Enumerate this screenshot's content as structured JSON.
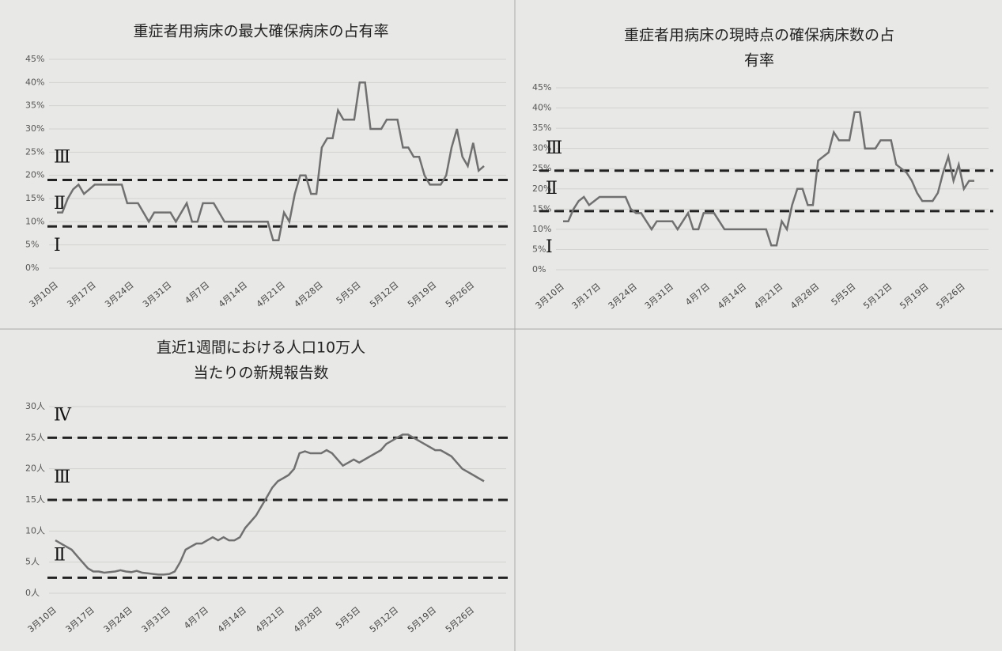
{
  "chart_data": [
    {
      "type": "line",
      "title": [
        "重症者用病床の最大確保病床の占有率"
      ],
      "categories": [
        "3月10日",
        null,
        null,
        null,
        null,
        null,
        null,
        "3月17日",
        null,
        null,
        null,
        null,
        null,
        null,
        "3月24日",
        null,
        null,
        null,
        null,
        null,
        null,
        "3月31日",
        null,
        null,
        null,
        null,
        null,
        null,
        "4月7日",
        null,
        null,
        null,
        null,
        null,
        null,
        "4月14日",
        null,
        null,
        null,
        null,
        null,
        null,
        "4月21日",
        null,
        null,
        null,
        null,
        null,
        null,
        "4月28日",
        null,
        null,
        null,
        null,
        null,
        null,
        "5月5日",
        null,
        null,
        null,
        null,
        null,
        null,
        "5月12日",
        null,
        null,
        null,
        null,
        null,
        null,
        "5月19日",
        null,
        null,
        null,
        null,
        null,
        null,
        "5月26日",
        null,
        null
      ],
      "values": [
        12,
        12,
        15,
        17,
        18,
        16,
        17,
        18,
        18,
        18,
        18,
        18,
        18,
        14,
        14,
        14,
        12,
        10,
        12,
        12,
        12,
        12,
        10,
        12,
        14,
        10,
        10,
        14,
        14,
        14,
        12,
        10,
        10,
        10,
        10,
        10,
        10,
        10,
        10,
        10,
        6,
        6,
        12,
        10,
        16,
        20,
        20,
        16,
        16,
        26,
        28,
        28,
        34,
        32,
        32,
        32,
        40,
        40,
        30,
        30,
        30,
        32,
        32,
        32,
        26,
        26,
        24,
        24,
        20,
        18,
        18,
        18,
        20,
        26,
        30,
        24,
        22,
        27,
        21,
        22
      ],
      "color": "#707070",
      "ylim": [
        0,
        45
      ],
      "yticks": [
        {
          "value": 0,
          "label": "0%"
        },
        {
          "value": 5,
          "label": "5%"
        },
        {
          "value": 10,
          "label": "10%"
        },
        {
          "value": 15,
          "label": "15%"
        },
        {
          "value": 20,
          "label": "20%"
        },
        {
          "value": 25,
          "label": "25%"
        },
        {
          "value": 30,
          "label": "30%"
        },
        {
          "value": 35,
          "label": "35%"
        },
        {
          "value": 40,
          "label": "40%"
        },
        {
          "value": 45,
          "label": "45%"
        }
      ],
      "thresholds": [
        9,
        19
      ],
      "stage_labels": [
        "Ⅰ",
        "Ⅱ",
        "Ⅲ"
      ]
    },
    {
      "type": "line",
      "title": [
        "重症者用病床の現時点の確保病床数の占",
        "有率"
      ],
      "categories": [
        "3月10日",
        null,
        null,
        null,
        null,
        null,
        null,
        "3月17日",
        null,
        null,
        null,
        null,
        null,
        null,
        "3月24日",
        null,
        null,
        null,
        null,
        null,
        null,
        "3月31日",
        null,
        null,
        null,
        null,
        null,
        null,
        "4月7日",
        null,
        null,
        null,
        null,
        null,
        null,
        "4月14日",
        null,
        null,
        null,
        null,
        null,
        null,
        "4月21日",
        null,
        null,
        null,
        null,
        null,
        null,
        "4月28日",
        null,
        null,
        null,
        null,
        null,
        null,
        "5月5日",
        null,
        null,
        null,
        null,
        null,
        null,
        "5月12日",
        null,
        null,
        null,
        null,
        null,
        null,
        "5月19日",
        null,
        null,
        null,
        null,
        null,
        null,
        "5月26日",
        null,
        null
      ],
      "values": [
        12,
        12,
        15,
        17,
        18,
        16,
        17,
        18,
        18,
        18,
        18,
        18,
        18,
        15,
        14,
        14,
        12,
        10,
        12,
        12,
        12,
        12,
        10,
        12,
        14,
        10,
        10,
        14,
        14,
        14,
        12,
        10,
        10,
        10,
        10,
        10,
        10,
        10,
        10,
        10,
        6,
        6,
        12,
        10,
        16,
        20,
        20,
        16,
        16,
        27,
        28,
        29,
        34,
        32,
        32,
        32,
        39,
        39,
        30,
        30,
        30,
        32,
        32,
        32,
        26,
        25,
        24,
        22,
        19,
        17,
        17,
        17,
        19,
        24,
        28,
        22,
        26,
        20,
        22,
        22
      ],
      "color": "#707070",
      "ylim": [
        0,
        45
      ],
      "yticks": [
        {
          "value": 0,
          "label": "0%"
        },
        {
          "value": 5,
          "label": "5%"
        },
        {
          "value": 10,
          "label": "10%"
        },
        {
          "value": 15,
          "label": "15%"
        },
        {
          "value": 20,
          "label": "20%"
        },
        {
          "value": 25,
          "label": "25%"
        },
        {
          "value": 30,
          "label": "30%"
        },
        {
          "value": 35,
          "label": "35%"
        },
        {
          "value": 40,
          "label": "40%"
        },
        {
          "value": 45,
          "label": "45%"
        }
      ],
      "thresholds": [
        14.5,
        24.5
      ],
      "stage_labels": [
        "Ⅰ",
        "Ⅱ",
        "Ⅲ"
      ]
    },
    {
      "type": "line",
      "title": [
        "直近1週間における人口10万人",
        "当たりの新規報告数"
      ],
      "categories": [
        "3月10日",
        null,
        null,
        null,
        null,
        null,
        null,
        "3月17日",
        null,
        null,
        null,
        null,
        null,
        null,
        "3月24日",
        null,
        null,
        null,
        null,
        null,
        null,
        "3月31日",
        null,
        null,
        null,
        null,
        null,
        null,
        "4月7日",
        null,
        null,
        null,
        null,
        null,
        null,
        "4月14日",
        null,
        null,
        null,
        null,
        null,
        null,
        "4月21日",
        null,
        null,
        null,
        null,
        null,
        null,
        "4月28日",
        null,
        null,
        null,
        null,
        null,
        null,
        "5月5日",
        null,
        null,
        null,
        null,
        null,
        null,
        "5月12日",
        null,
        null,
        null,
        null,
        null,
        null,
        "5月19日",
        null,
        null,
        null,
        null,
        null,
        null,
        "5月26日",
        null,
        null
      ],
      "values": [
        8.5,
        8,
        7.5,
        7,
        6,
        5,
        4,
        3.5,
        3.5,
        3.3,
        3.4,
        3.5,
        3.7,
        3.5,
        3.4,
        3.6,
        3.3,
        3.2,
        3.1,
        3,
        3,
        3.1,
        3.5,
        5,
        7,
        7.5,
        8,
        8,
        8.5,
        9,
        8.5,
        9,
        8.5,
        8.5,
        9,
        10.5,
        11.5,
        12.5,
        14,
        15.5,
        17,
        18,
        18.5,
        19,
        20,
        22.5,
        22.8,
        22.5,
        22.5,
        22.5,
        23,
        22.5,
        21.5,
        20.5,
        21,
        21.5,
        21,
        21.5,
        22,
        22.5,
        23,
        24,
        24.5,
        25,
        25.5,
        25.5,
        25,
        24.5,
        24,
        23.5,
        23,
        23,
        22.5,
        22,
        21,
        20,
        19.5,
        19,
        18.5,
        18
      ],
      "color": "#707070",
      "ylim": [
        0,
        30
      ],
      "yticks": [
        {
          "value": 0,
          "label": "0人"
        },
        {
          "value": 5,
          "label": "5人"
        },
        {
          "value": 10,
          "label": "10人"
        },
        {
          "value": 15,
          "label": "15人"
        },
        {
          "value": 20,
          "label": "20人"
        },
        {
          "value": 25,
          "label": "25人"
        },
        {
          "value": 30,
          "label": "30人"
        }
      ],
      "thresholds": [
        2.5,
        15,
        25
      ],
      "stage_labels": [
        "Ⅱ",
        "Ⅲ",
        "Ⅳ"
      ]
    }
  ]
}
